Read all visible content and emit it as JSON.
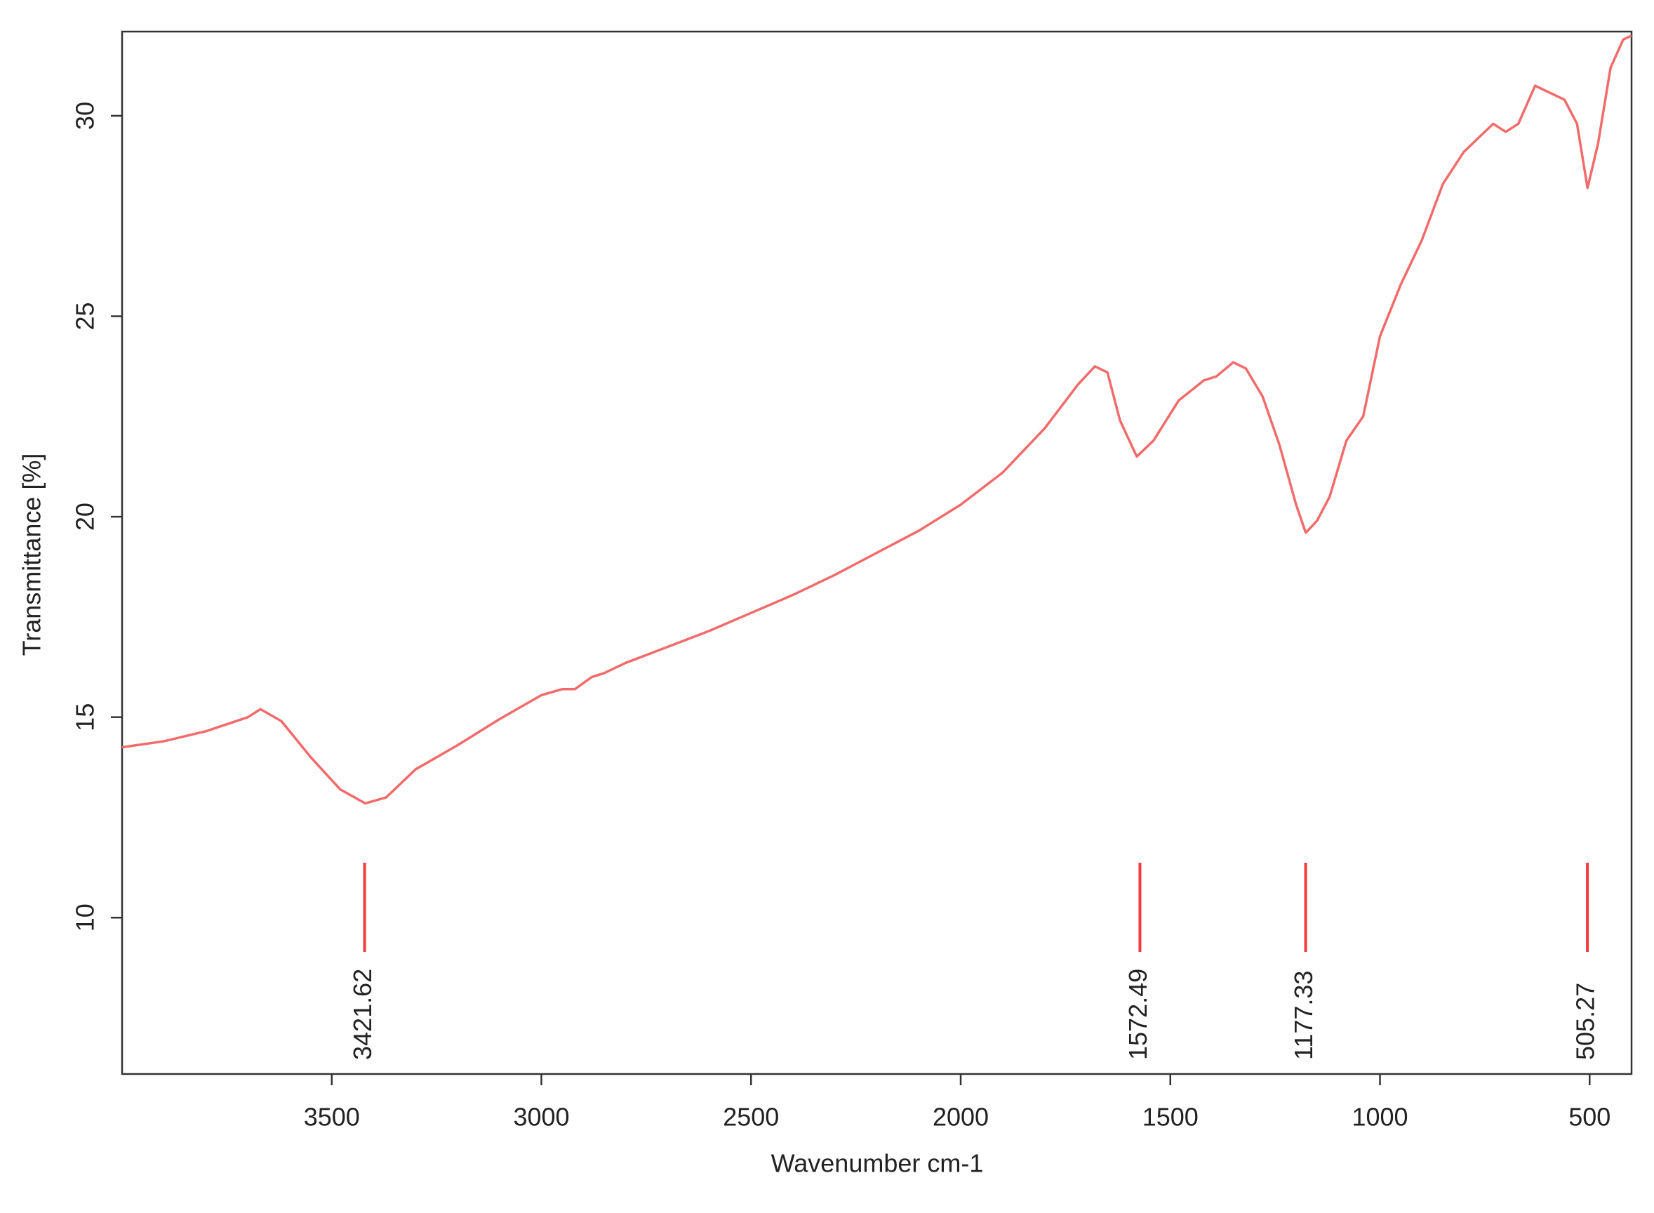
{
  "chart_data": {
    "type": "line",
    "x_label": "Wavenumber cm-1",
    "y_label": "Transmittance [%]",
    "xlim": [
      4000,
      400
    ],
    "ylim": [
      6.1,
      32.1
    ],
    "xticks": [
      3500,
      3000,
      2500,
      2000,
      1500,
      1000,
      500
    ],
    "yticks": [
      10,
      15,
      20,
      25,
      30
    ],
    "series": [
      {
        "color": "#f26b6b",
        "x": [
          4000,
          3900,
          3800,
          3700,
          3670,
          3620,
          3550,
          3480,
          3420,
          3370,
          3300,
          3200,
          3100,
          3000,
          2950,
          2920,
          2880,
          2850,
          2800,
          2700,
          2600,
          2500,
          2400,
          2300,
          2200,
          2100,
          2000,
          1900,
          1800,
          1720,
          1680,
          1650,
          1620,
          1580,
          1540,
          1480,
          1420,
          1390,
          1350,
          1320,
          1280,
          1240,
          1200,
          1177,
          1150,
          1120,
          1080,
          1040,
          1000,
          950,
          900,
          850,
          800,
          760,
          730,
          700,
          670,
          630,
          600,
          560,
          530,
          505,
          480,
          450,
          420,
          400
        ],
        "values": [
          14.25,
          14.4,
          14.65,
          15.0,
          15.2,
          14.9,
          14.0,
          13.2,
          12.85,
          13.0,
          13.7,
          14.3,
          14.95,
          15.55,
          15.7,
          15.7,
          16.0,
          16.1,
          16.35,
          16.75,
          17.15,
          17.6,
          18.05,
          18.55,
          19.1,
          19.65,
          20.3,
          21.1,
          22.2,
          23.3,
          23.75,
          23.6,
          22.4,
          21.5,
          21.9,
          22.9,
          23.4,
          23.5,
          23.85,
          23.7,
          23.0,
          21.8,
          20.3,
          19.6,
          19.9,
          20.5,
          21.9,
          22.5,
          24.5,
          25.8,
          26.9,
          28.3,
          29.1,
          29.5,
          29.8,
          29.6,
          29.8,
          30.75,
          30.6,
          30.4,
          29.8,
          28.2,
          29.3,
          31.2,
          31.9,
          32.0
        ]
      }
    ],
    "peaks": [
      3421.62,
      1572.49,
      1177.33,
      505.27
    ],
    "peak_color": "#f03c3c"
  }
}
